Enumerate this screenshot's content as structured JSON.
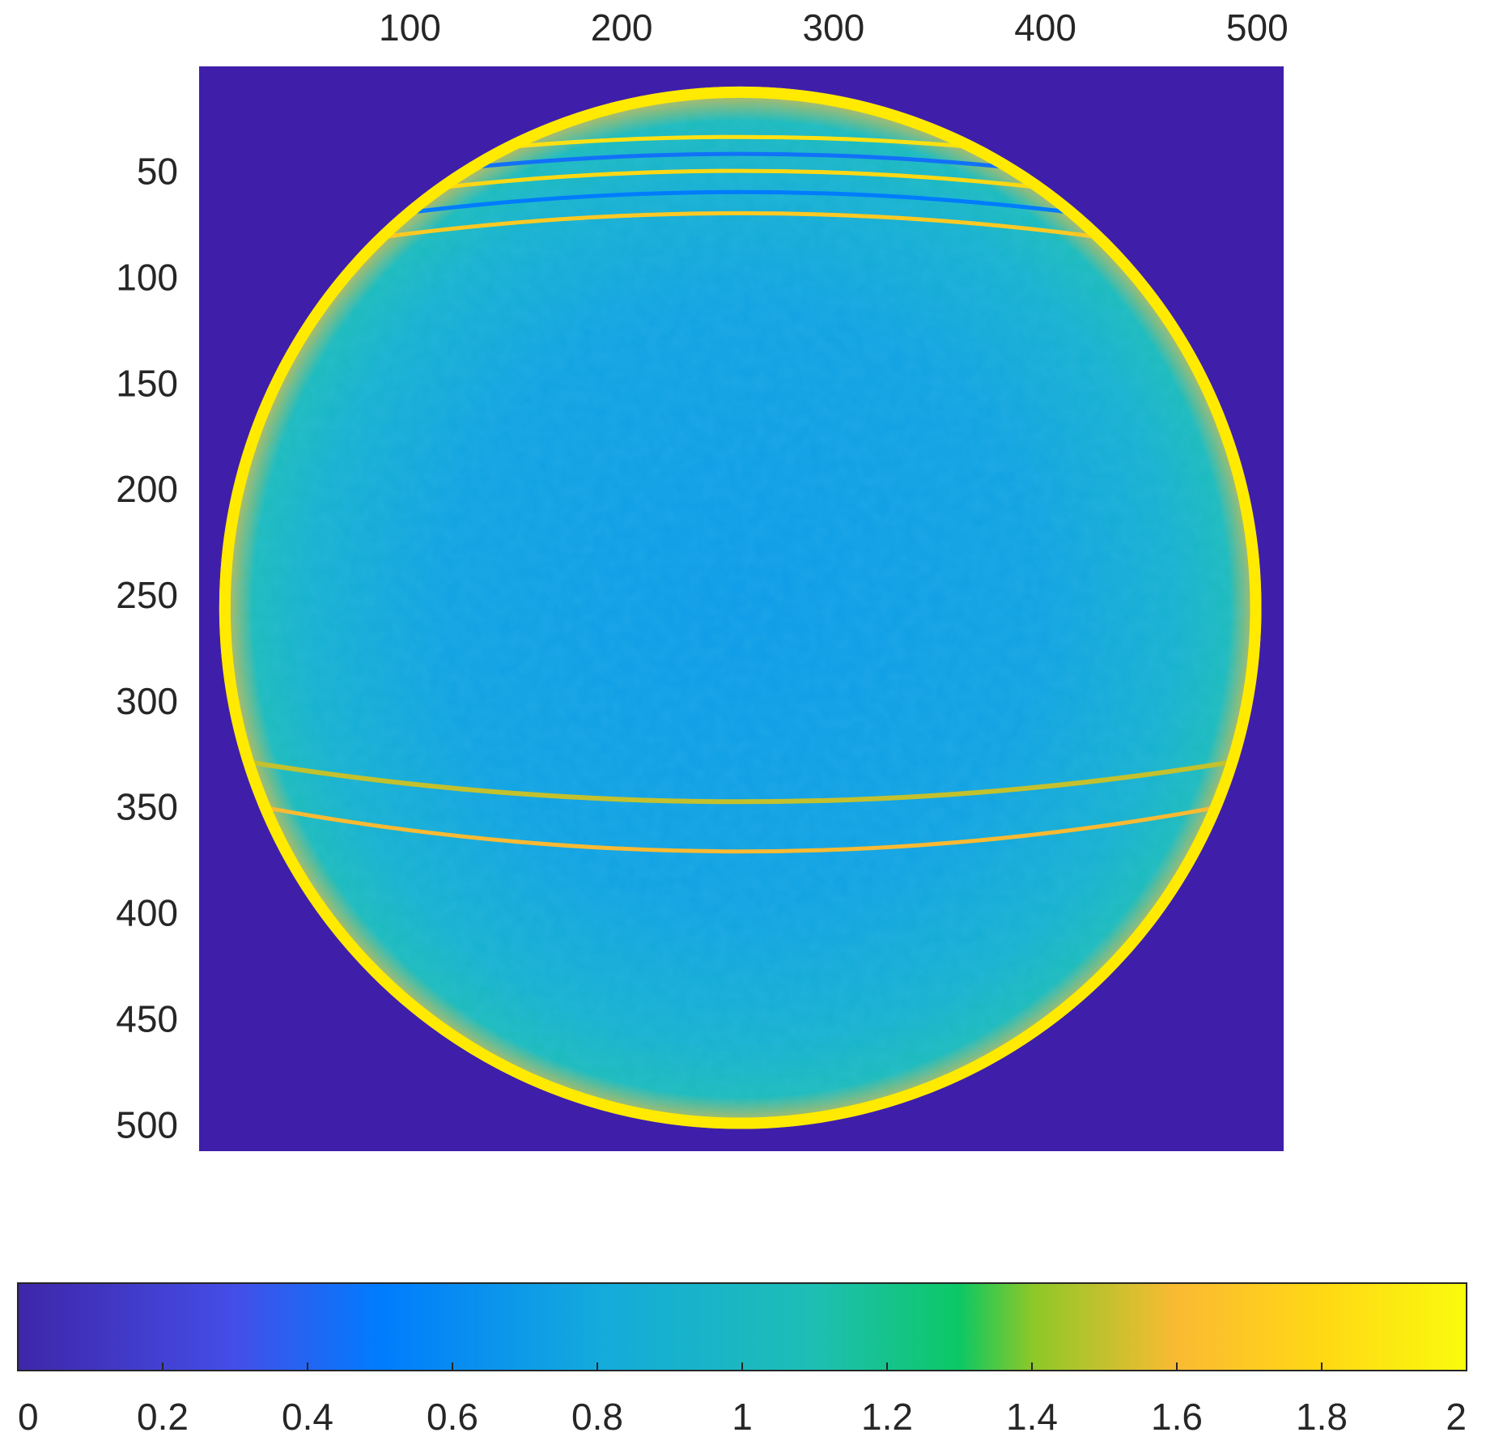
{
  "chart_data": {
    "type": "heatmap",
    "title": "",
    "xlabel": "",
    "ylabel": "",
    "x_axis_position": "top",
    "x_ticks": [
      100,
      200,
      300,
      400,
      500
    ],
    "y_ticks": [
      50,
      100,
      150,
      200,
      250,
      300,
      350,
      400,
      450,
      500
    ],
    "xlim": [
      0.5,
      512.5
    ],
    "ylim": [
      0.5,
      512.5
    ],
    "grid": false,
    "colorbar": {
      "orientation": "horizontal",
      "position": "bottom",
      "range": [
        0,
        2
      ],
      "ticks": [
        "0",
        "0.2",
        "0.4",
        "0.6",
        "0.8",
        "1",
        "1.2",
        "1.4",
        "1.6",
        "1.8",
        "2"
      ],
      "tick_values": [
        0,
        0.2,
        0.4,
        0.6,
        0.8,
        1,
        1.2,
        1.4,
        1.6,
        1.8,
        2
      ]
    },
    "colors": {
      "background": "#3f1fa9",
      "interior": "#1c9ee3",
      "rim": "#ffea00"
    },
    "field": {
      "center": [
        256,
        256
      ],
      "radius": 246,
      "outside_value": 0,
      "center_value": 0.7,
      "rim_value": 1.9,
      "equator_seam_y": 350
    }
  }
}
